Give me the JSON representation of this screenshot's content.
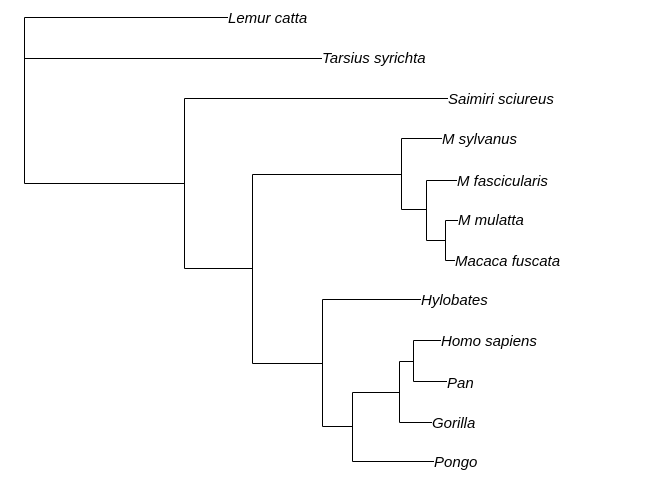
{
  "tree": {
    "line_color": "#000000",
    "label_color": "#000000",
    "tips": [
      {
        "id": "lemur",
        "label": "Lemur catta"
      },
      {
        "id": "tarsius",
        "label": "Tarsius syrichta"
      },
      {
        "id": "saimiri",
        "label": "Saimiri sciureus"
      },
      {
        "id": "msylvanus",
        "label": "M sylvanus"
      },
      {
        "id": "mfasc",
        "label": "M fascicularis"
      },
      {
        "id": "mmulatta",
        "label": "M mulatta"
      },
      {
        "id": "mfuscata",
        "label": "Macaca fuscata"
      },
      {
        "id": "hylobates",
        "label": "Hylobates"
      },
      {
        "id": "homo",
        "label": "Homo sapiens"
      },
      {
        "id": "pan",
        "label": "Pan"
      },
      {
        "id": "gorilla",
        "label": "Gorilla"
      },
      {
        "id": "pongo",
        "label": "Pongo"
      }
    ]
  }
}
